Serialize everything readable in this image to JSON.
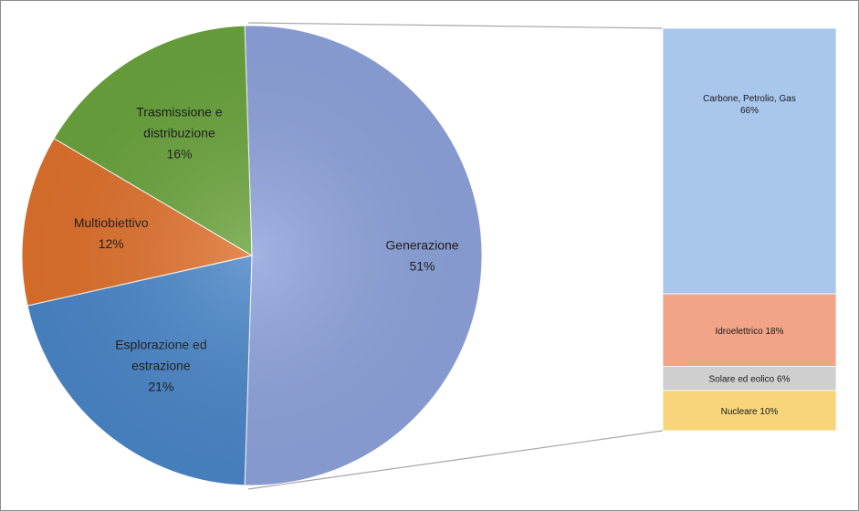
{
  "chart_data": {
    "type": "pie",
    "subtype": "bar-of-pie",
    "pie": {
      "slices": [
        {
          "label_lines": [
            "Generazione"
          ],
          "value": 51,
          "value_label": "51%",
          "color": "#8ea3dc"
        },
        {
          "label_lines": [
            "Esplorazione ed",
            "estrazione"
          ],
          "value": 21,
          "value_label": "21%",
          "color": "#4a86c8"
        },
        {
          "label_lines": [
            "Multiobiettivo"
          ],
          "value": 12,
          "value_label": "12%",
          "color": "#e0712c"
        },
        {
          "label_lines": [
            "Trasmissione e",
            "distribuzione"
          ],
          "value": 16,
          "value_label": "16%",
          "color": "#6aa43c"
        }
      ]
    },
    "bar": {
      "segments": [
        {
          "label_lines": [
            "Carbone, Petrolio, Gas",
            "66%"
          ],
          "value": 66,
          "color": "#a9c6ec"
        },
        {
          "label_lines": [
            "Idroelettrico 18%"
          ],
          "value": 18,
          "color": "#f1a487"
        },
        {
          "label_lines": [
            "Solare ed eolico 6%"
          ],
          "value": 6,
          "color": "#cfcfcf"
        },
        {
          "label_lines": [
            "Nucleare 10%"
          ],
          "value": 10,
          "color": "#f8d57a"
        }
      ]
    },
    "connector_color": "#a6a6a6"
  }
}
